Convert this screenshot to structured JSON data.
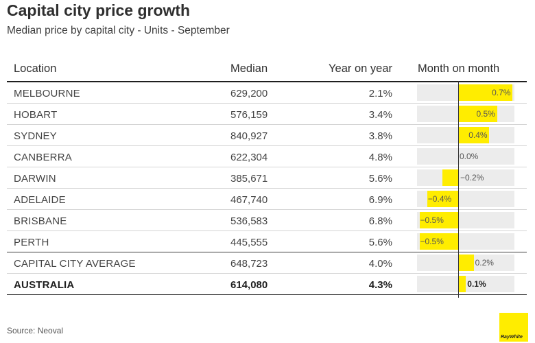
{
  "title": "Capital city price growth",
  "subtitle": "Median price by capital city - Units - September",
  "headers": {
    "location": "Location",
    "median": "Median",
    "yoy": "Year on year",
    "mom": "Month on month"
  },
  "rows": [
    {
      "location": "MELBOURNE",
      "median": "629,200",
      "yoy": "2.1%",
      "mom_label": "0.7%",
      "bold": false
    },
    {
      "location": "HOBART",
      "median": "576,159",
      "yoy": "3.4%",
      "mom_label": "0.5%",
      "bold": false
    },
    {
      "location": "SYDNEY",
      "median": "840,927",
      "yoy": "3.8%",
      "mom_label": "0.4%",
      "bold": false
    },
    {
      "location": "CANBERRA",
      "median": "622,304",
      "yoy": "4.8%",
      "mom_label": "0.0%",
      "bold": false
    },
    {
      "location": "DARWIN",
      "median": "385,671",
      "yoy": "5.6%",
      "mom_label": "−0.2%",
      "bold": false
    },
    {
      "location": "ADELAIDE",
      "median": "467,740",
      "yoy": "6.9%",
      "mom_label": "−0.4%",
      "bold": false
    },
    {
      "location": "BRISBANE",
      "median": "536,583",
      "yoy": "6.8%",
      "mom_label": "−0.5%",
      "bold": false
    },
    {
      "location": "PERTH",
      "median": "445,555",
      "yoy": "5.6%",
      "mom_label": "−0.5%",
      "bold": false
    },
    {
      "location": "CAPITAL CITY AVERAGE",
      "median": "648,723",
      "yoy": "4.0%",
      "mom_label": "0.2%",
      "bold": false
    },
    {
      "location": "AUSTRALIA",
      "median": "614,080",
      "yoy": "4.3%",
      "mom_label": "0.1%",
      "bold": true
    }
  ],
  "chart_data": {
    "type": "table",
    "title": "Capital city price growth",
    "subtitle": "Median price by capital city - Units - September",
    "columns": [
      "Location",
      "Median",
      "Year on year",
      "Month on month"
    ],
    "categories": [
      "MELBOURNE",
      "HOBART",
      "SYDNEY",
      "CANBERRA",
      "DARWIN",
      "ADELAIDE",
      "BRISBANE",
      "PERTH",
      "CAPITAL CITY AVERAGE",
      "AUSTRALIA"
    ],
    "series": [
      {
        "name": "Median",
        "values": [
          629200,
          576159,
          840927,
          622304,
          385671,
          467740,
          536583,
          445555,
          648723,
          614080
        ]
      },
      {
        "name": "Year on year",
        "values": [
          2.1,
          3.4,
          3.8,
          4.8,
          5.6,
          6.9,
          6.8,
          5.6,
          4.0,
          4.3
        ]
      },
      {
        "name": "Month on month",
        "values": [
          0.7,
          0.5,
          0.4,
          0.0,
          -0.2,
          -0.4,
          -0.5,
          -0.5,
          0.2,
          0.1
        ]
      }
    ],
    "mom_range": [
      -0.6,
      0.9
    ],
    "bar_color": "#ffed00"
  },
  "source": "Source: Neoval",
  "logo_text": "RayWhite",
  "colors": {
    "accent": "#ffed00",
    "bar_bg": "#ececec"
  }
}
